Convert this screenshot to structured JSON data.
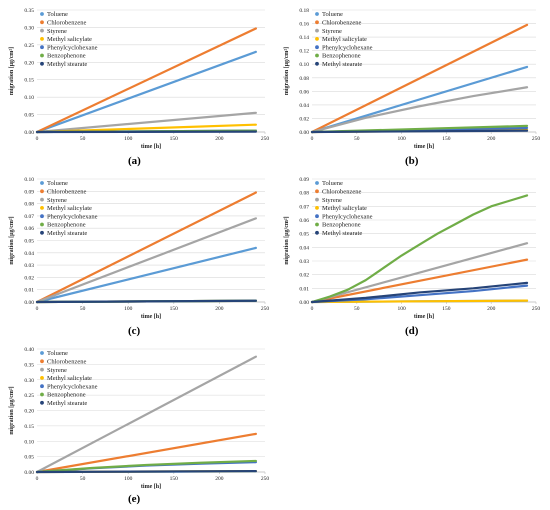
{
  "chart_data": [
    {
      "label": "(a)",
      "type": "line",
      "xlabel": "time [h]",
      "ylabel": "migration [μg/cm²]",
      "xlim": [
        0,
        250
      ],
      "ylim": [
        0,
        0.35
      ],
      "xticks": [
        0,
        50,
        100,
        150,
        200,
        250
      ],
      "yticks": [
        "0.00",
        "0.05",
        "0.10",
        "0.15",
        "0.20",
        "0.25",
        "0.30",
        "0.35"
      ],
      "grid": "horizontal",
      "legend": "top-left",
      "series": [
        {
          "name": "Toluene",
          "color": "#5B9BD5",
          "x": [
            0,
            240
          ],
          "y": [
            0,
            0.23
          ]
        },
        {
          "name": "Chlorobenzene",
          "color": "#ED7D31",
          "x": [
            0,
            240
          ],
          "y": [
            0,
            0.297
          ]
        },
        {
          "name": "Styrene",
          "color": "#A5A5A5",
          "x": [
            0,
            240
          ],
          "y": [
            0,
            0.055
          ]
        },
        {
          "name": "Methyl salicylate",
          "color": "#FFC000",
          "x": [
            0,
            240
          ],
          "y": [
            0,
            0.021
          ]
        },
        {
          "name": "Phenylcyclohexane",
          "color": "#4472C4",
          "x": [
            0,
            240
          ],
          "y": [
            0,
            0.004
          ]
        },
        {
          "name": "Benzophenone",
          "color": "#70AD47",
          "x": [
            0,
            240
          ],
          "y": [
            0,
            0.004
          ]
        },
        {
          "name": "Methyl stearate",
          "color": "#264478",
          "x": [
            0,
            240
          ],
          "y": [
            0,
            0.001
          ]
        }
      ]
    },
    {
      "label": "(b)",
      "type": "line",
      "xlabel": "time [h]",
      "ylabel": "migration [μg/cm²]",
      "xlim": [
        0,
        250
      ],
      "ylim": [
        0,
        0.18
      ],
      "xticks": [
        0,
        50,
        100,
        150,
        200,
        250
      ],
      "yticks": [
        "0.00",
        "0.02",
        "0.04",
        "0.06",
        "0.08",
        "0.10",
        "0.12",
        "0.14",
        "0.16",
        "0.18"
      ],
      "grid": "horizontal",
      "legend": "top-left",
      "series": [
        {
          "name": "Toluene",
          "color": "#5B9BD5",
          "x": [
            0,
            240
          ],
          "y": [
            0,
            0.096
          ]
        },
        {
          "name": "Chlorobenzene",
          "color": "#ED7D31",
          "x": [
            0,
            240
          ],
          "y": [
            0,
            0.158
          ]
        },
        {
          "name": "Styrene",
          "color": "#A5A5A5",
          "x": [
            0,
            60,
            120,
            180,
            240
          ],
          "y": [
            0,
            0.021,
            0.038,
            0.053,
            0.066
          ]
        },
        {
          "name": "Methyl salicylate",
          "color": "#FFC000",
          "x": [
            0,
            240
          ],
          "y": [
            0,
            0.003
          ]
        },
        {
          "name": "Phenylcyclohexane",
          "color": "#4472C4",
          "x": [
            0,
            240
          ],
          "y": [
            0,
            0.006
          ]
        },
        {
          "name": "Benzophenone",
          "color": "#70AD47",
          "x": [
            0,
            240
          ],
          "y": [
            0,
            0.009
          ]
        },
        {
          "name": "Methyl stearate",
          "color": "#264478",
          "x": [
            0,
            240
          ],
          "y": [
            0,
            0.002
          ]
        }
      ]
    },
    {
      "label": "(c)",
      "type": "line",
      "xlabel": "time [h]",
      "ylabel": "migration [μg/cm²]",
      "xlim": [
        0,
        250
      ],
      "ylim": [
        0,
        0.1
      ],
      "xticks": [
        0,
        50,
        100,
        150,
        200,
        250
      ],
      "yticks": [
        "0.00",
        "0.01",
        "0.02",
        "0.03",
        "0.04",
        "0.05",
        "0.06",
        "0.07",
        "0.08",
        "0.09",
        "0.10"
      ],
      "grid": "horizontal",
      "legend": "top-left",
      "series": [
        {
          "name": "Toluene",
          "color": "#5B9BD5",
          "x": [
            0,
            240
          ],
          "y": [
            0,
            0.044
          ]
        },
        {
          "name": "Chlorobenzene",
          "color": "#ED7D31",
          "x": [
            0,
            240
          ],
          "y": [
            0,
            0.089
          ]
        },
        {
          "name": "Styrene",
          "color": "#A5A5A5",
          "x": [
            0,
            240
          ],
          "y": [
            0,
            0.068
          ]
        },
        {
          "name": "Methyl salicylate",
          "color": "#FFC000",
          "x": [
            0,
            240
          ],
          "y": [
            0,
            0.001
          ]
        },
        {
          "name": "Phenylcyclohexane",
          "color": "#4472C4",
          "x": [
            0,
            240
          ],
          "y": [
            0,
            0.001
          ]
        },
        {
          "name": "Benzophenone",
          "color": "#70AD47",
          "x": [
            0,
            240
          ],
          "y": [
            0,
            0.001
          ]
        },
        {
          "name": "Methyl stearate",
          "color": "#264478",
          "x": [
            0,
            240
          ],
          "y": [
            0,
            0.001
          ]
        }
      ]
    },
    {
      "label": "(d)",
      "type": "line",
      "xlabel": "time [h]",
      "ylabel": "migration [μg/cm²]",
      "xlim": [
        0,
        250
      ],
      "ylim": [
        0,
        0.09
      ],
      "xticks": [
        0,
        50,
        100,
        150,
        200,
        250
      ],
      "yticks": [
        "0.00",
        "0.01",
        "0.02",
        "0.03",
        "0.04",
        "0.05",
        "0.06",
        "0.07",
        "0.08",
        "0.09"
      ],
      "grid": "horizontal",
      "legend": "top-left",
      "series": [
        {
          "name": "Toluene",
          "color": "#5B9BD5",
          "x": [
            0,
            240
          ],
          "y": [
            0,
            0.001
          ]
        },
        {
          "name": "Chlorobenzene",
          "color": "#ED7D31",
          "x": [
            0,
            240
          ],
          "y": [
            0,
            0.031
          ]
        },
        {
          "name": "Styrene",
          "color": "#A5A5A5",
          "x": [
            0,
            240
          ],
          "y": [
            0,
            0.043
          ]
        },
        {
          "name": "Methyl salicylate",
          "color": "#FFC000",
          "x": [
            0,
            240
          ],
          "y": [
            0,
            0.001
          ]
        },
        {
          "name": "Phenylcyclohexane",
          "color": "#4472C4",
          "x": [
            0,
            60,
            120,
            180,
            240
          ],
          "y": [
            0,
            0.002,
            0.005,
            0.008,
            0.012
          ]
        },
        {
          "name": "Benzophenone",
          "color": "#70AD47",
          "x": [
            0,
            20,
            40,
            60,
            80,
            100,
            120,
            140,
            160,
            180,
            200,
            220,
            240
          ],
          "y": [
            0,
            0.004,
            0.009,
            0.016,
            0.025,
            0.034,
            0.042,
            0.05,
            0.057,
            0.064,
            0.07,
            0.074,
            0.078
          ]
        },
        {
          "name": "Methyl stearate",
          "color": "#264478",
          "x": [
            0,
            60,
            120,
            180,
            240
          ],
          "y": [
            0,
            0.003,
            0.007,
            0.01,
            0.014
          ]
        }
      ]
    },
    {
      "label": "(e)",
      "type": "line",
      "xlabel": "time [h]",
      "ylabel": "migration [μg/cm²]",
      "xlim": [
        0,
        250
      ],
      "ylim": [
        0,
        0.4
      ],
      "xticks": [
        0,
        50,
        100,
        150,
        200,
        250
      ],
      "yticks": [
        "0.00",
        "0.05",
        "0.10",
        "0.15",
        "0.20",
        "0.25",
        "0.30",
        "0.35",
        "0.40"
      ],
      "grid": "horizontal",
      "legend": "top-left",
      "series": [
        {
          "name": "Toluene",
          "color": "#5B9BD5",
          "x": [
            0,
            240
          ],
          "y": [
            0,
            0.002
          ]
        },
        {
          "name": "Chlorobenzene",
          "color": "#ED7D31",
          "x": [
            0,
            240
          ],
          "y": [
            0,
            0.124
          ]
        },
        {
          "name": "Styrene",
          "color": "#A5A5A5",
          "x": [
            0,
            240
          ],
          "y": [
            0,
            0.375
          ]
        },
        {
          "name": "Methyl salicylate",
          "color": "#FFC000",
          "x": [
            0,
            240
          ],
          "y": [
            0,
            0.003
          ]
        },
        {
          "name": "Phenylcyclohexane",
          "color": "#4472C4",
          "x": [
            0,
            60,
            120,
            180,
            240
          ],
          "y": [
            0,
            0.012,
            0.021,
            0.027,
            0.032
          ]
        },
        {
          "name": "Benzophenone",
          "color": "#70AD47",
          "x": [
            0,
            60,
            120,
            180,
            240
          ],
          "y": [
            0,
            0.013,
            0.023,
            0.03,
            0.036
          ]
        },
        {
          "name": "Methyl stearate",
          "color": "#264478",
          "x": [
            0,
            240
          ],
          "y": [
            0,
            0.003
          ]
        }
      ]
    }
  ]
}
